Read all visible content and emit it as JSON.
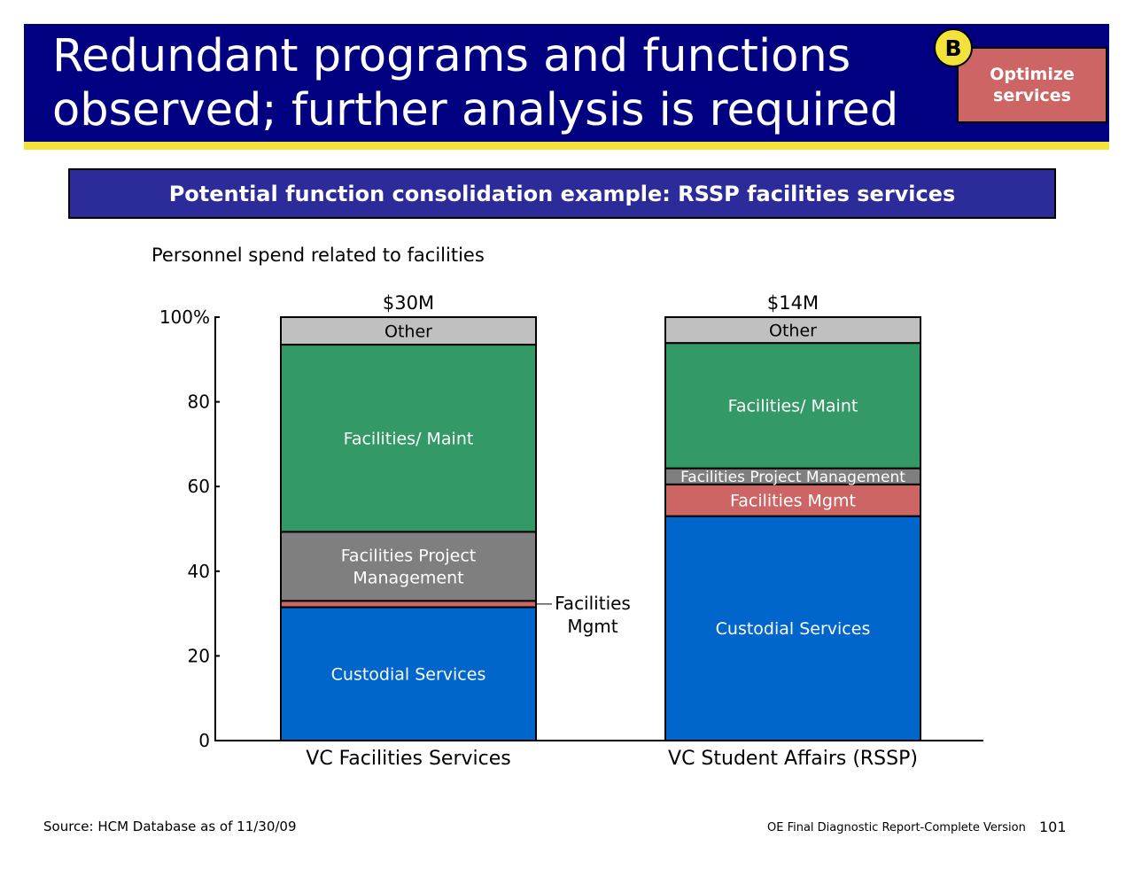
{
  "slide": {
    "title": "Redundant programs and functions\nobserved; further analysis is required",
    "badge": "B",
    "tag": "Optimize\nservices",
    "banner": "Potential function consolidation example: RSSP facilities services",
    "footer_source": "Source: HCM Database as of 11/30/09",
    "footer_report": "OE Final Diagnostic Report-Complete Version",
    "page_number": "101"
  },
  "colors": {
    "title_bg": "#000080",
    "title_underline": "#f3e23a",
    "tag_bg": "#cd6565",
    "banner_bg": "#2b2b9a",
    "custodial": "#0066cc",
    "fac_mgmt": "#cd6565",
    "fac_project": "#7f7f7f",
    "fac_project_rssp": "#7f7f7f",
    "maint": "#339966",
    "other": "#c0c0c0"
  },
  "chart_data": {
    "type": "bar",
    "subtitle": "Personnel spend related to facilities",
    "categories": [
      "VC Facilities Services",
      "VC Student Affairs (RSSP)"
    ],
    "totals": [
      "$30M",
      "$14M"
    ],
    "ylim": [
      0,
      100
    ],
    "y_ticks": [
      "0",
      "20",
      "40",
      "60",
      "80",
      "100%"
    ],
    "series": [
      {
        "name": "Custodial Services",
        "color_key": "custodial",
        "values": [
          31.5,
          53
        ],
        "labels": [
          "Custodial Services",
          "Custodial Services"
        ]
      },
      {
        "name": "Facilities Mgmt",
        "color_key": "fac_mgmt",
        "values": [
          1.5,
          7.5
        ],
        "labels": [
          "",
          "Facilities Mgmt"
        ]
      },
      {
        "name": "Facilities Project Management",
        "color_key": "fac_project",
        "values": [
          16.3,
          3.8
        ],
        "labels": [
          "Facilities Project\nManagement",
          "Facilities  Project Management"
        ]
      },
      {
        "name": "Facilities/ Maint",
        "color_key": "maint",
        "values": [
          44.2,
          29.6
        ],
        "labels": [
          "Facilities/ Maint",
          "Facilities/ Maint"
        ]
      },
      {
        "name": "Other",
        "color_key": "other",
        "values": [
          6.5,
          6.1
        ],
        "labels": [
          "Other",
          "Other"
        ]
      }
    ],
    "annotation": "Facilities\nMgmt"
  }
}
